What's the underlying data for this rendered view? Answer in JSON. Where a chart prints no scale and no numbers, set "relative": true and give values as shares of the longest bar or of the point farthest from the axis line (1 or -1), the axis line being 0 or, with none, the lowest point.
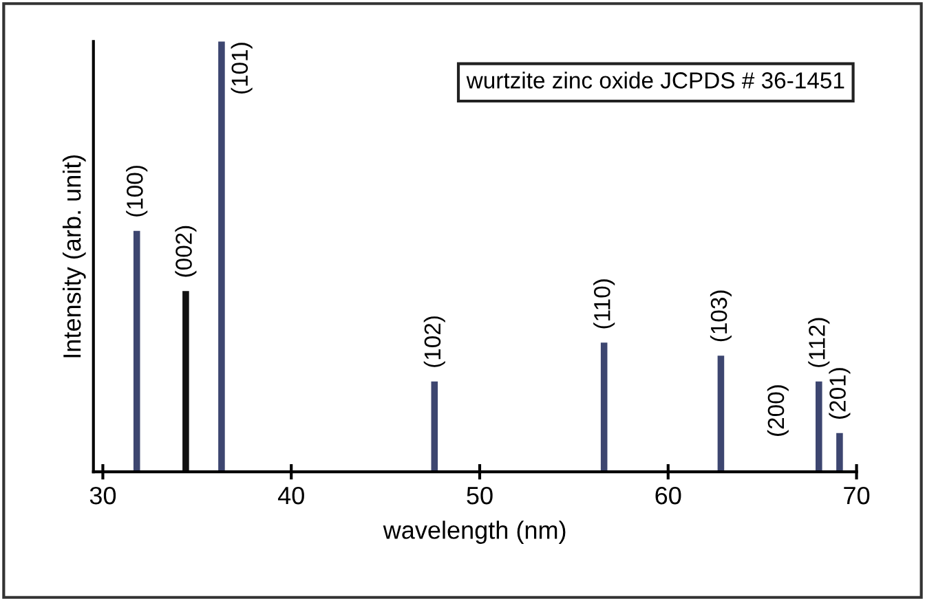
{
  "chart_data": {
    "type": "bar",
    "relative": true,
    "xlabel": "wavelength (nm)",
    "ylabel": "Intensity (arb. unit)",
    "x": [
      31.8,
      34.4,
      36.3,
      47.6,
      56.6,
      62.8,
      68.0,
      69.1
    ],
    "values": [
      0.56,
      0.42,
      1,
      0.21,
      0.3,
      0.27,
      0.21,
      0.09
    ],
    "colors": [
      "#3d4670",
      "#111111",
      "#3d4670",
      "#3d4670",
      "#3d4670",
      "#3d4670",
      "#3d4670",
      "#3d4670"
    ],
    "xlim": [
      29.5,
      70
    ],
    "xticks": [
      30,
      40,
      50,
      60,
      70
    ],
    "annotations": [
      "wurtzite zinc oxide JCPDS # 36-1451",
      {
        "text": "(100)",
        "x": 31.8,
        "y": 0.56
      },
      {
        "text": "(002)",
        "x": 34.4,
        "y": 0.42
      },
      {
        "text": "(101)",
        "x": 36.3,
        "y": 1
      },
      {
        "text": "(102)",
        "x": 47.6,
        "y": 0.21
      },
      {
        "text": "(110)",
        "x": 56.6,
        "y": 0.3
      },
      {
        "text": "(103)",
        "x": 62.8,
        "y": 0.27
      },
      "(200)",
      {
        "text": "(112)",
        "x": 68.0,
        "y": 0.21
      },
      {
        "text": "(201)",
        "x": 69.1,
        "y": 0.09
      }
    ],
    "grid": false,
    "legend": false
  }
}
